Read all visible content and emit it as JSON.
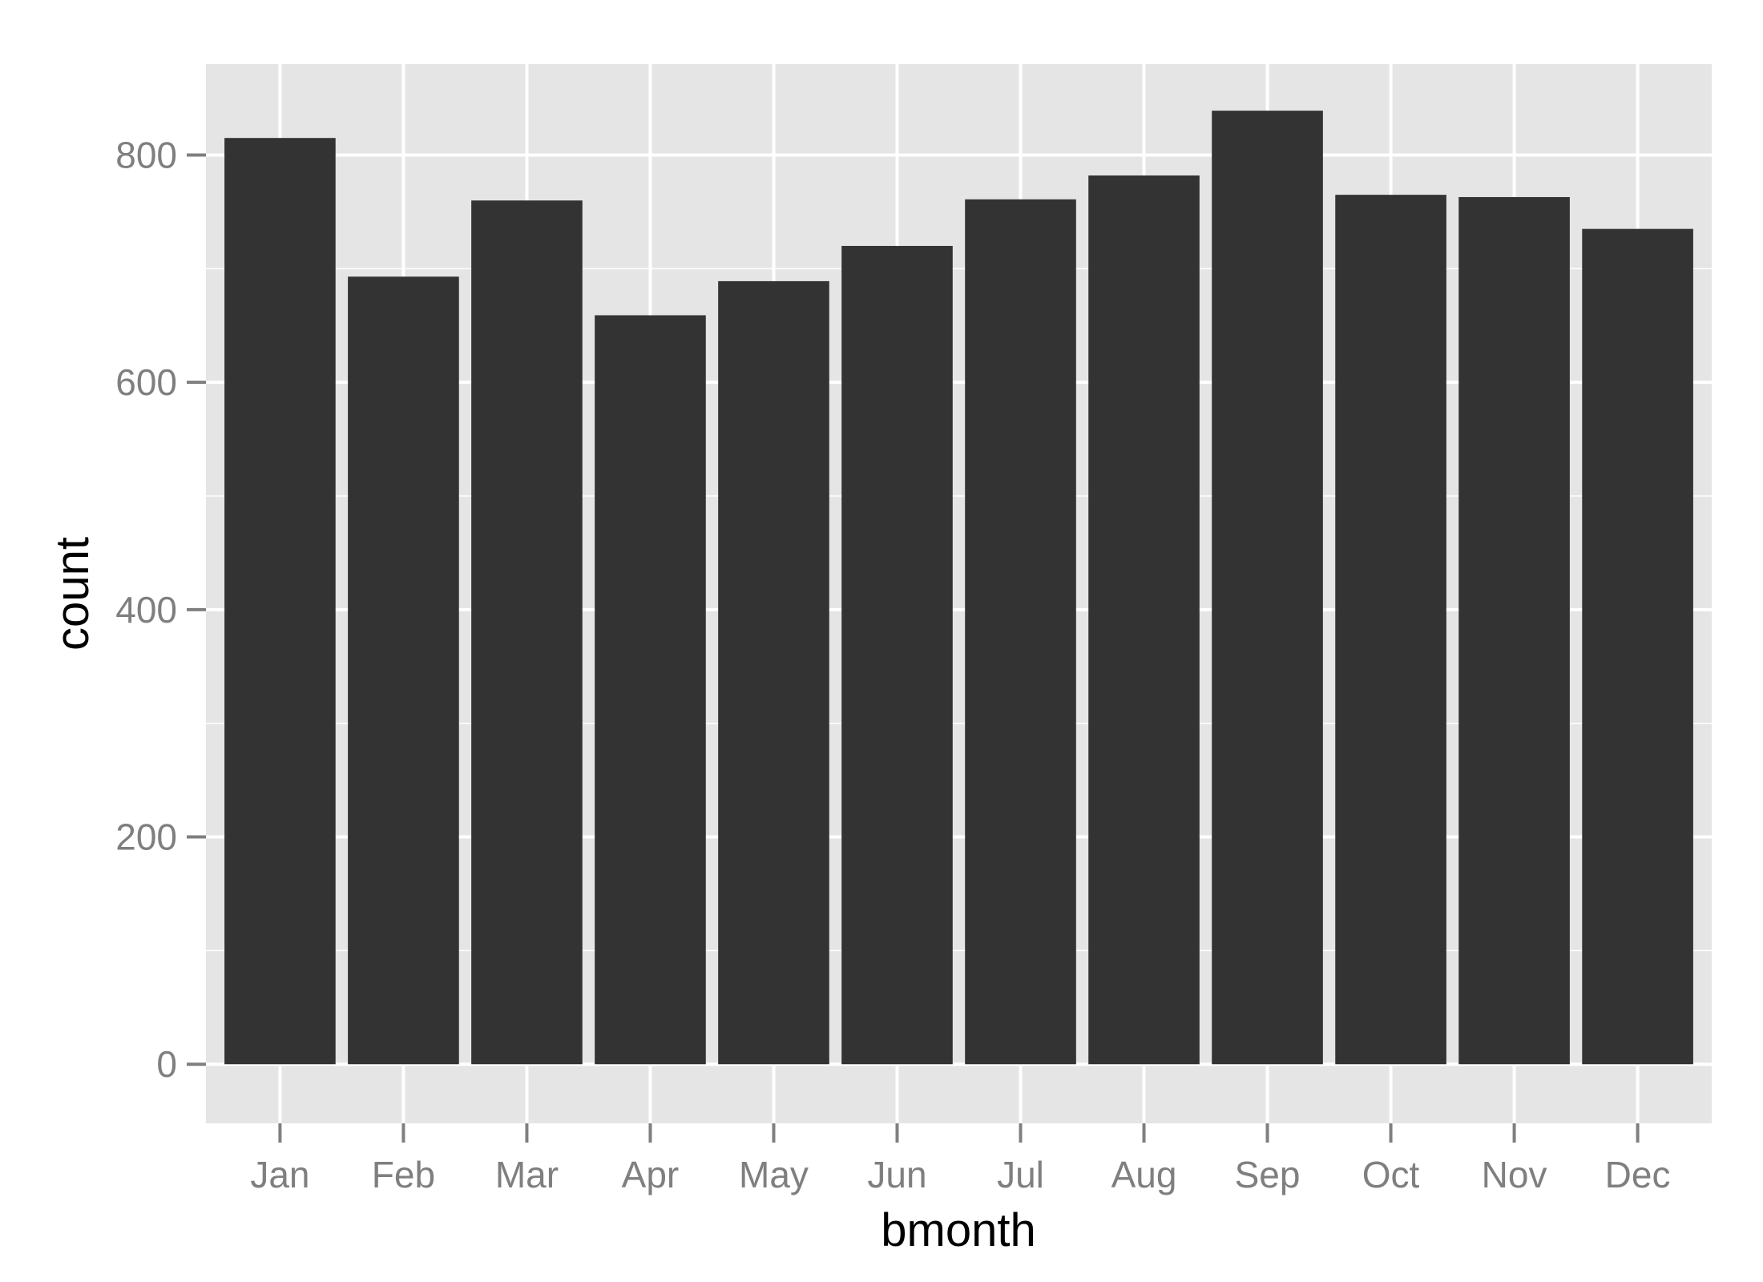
{
  "chart_data": {
    "type": "bar",
    "title": "",
    "xlabel": "bmonth",
    "ylabel": "count",
    "categories": [
      "Jan",
      "Feb",
      "Mar",
      "Apr",
      "May",
      "Jun",
      "Jul",
      "Aug",
      "Sep",
      "Oct",
      "Nov",
      "Dec"
    ],
    "values": [
      815,
      693,
      760,
      659,
      689,
      720,
      761,
      782,
      839,
      765,
      763,
      735
    ],
    "ylim": [
      -52,
      880
    ],
    "yticks": [
      0,
      200,
      400,
      600,
      800
    ],
    "yticks_labels": [
      "0",
      "200",
      "400",
      "600",
      "800"
    ],
    "grid": true,
    "legend": "none",
    "colors": {
      "panel_background": "#e5e5e5",
      "grid": "#ffffff",
      "bar_fill": "#333333",
      "tick_text": "#7f7f7f",
      "tick_mark": "#7f7f7f",
      "axis_title": "#000000"
    }
  }
}
